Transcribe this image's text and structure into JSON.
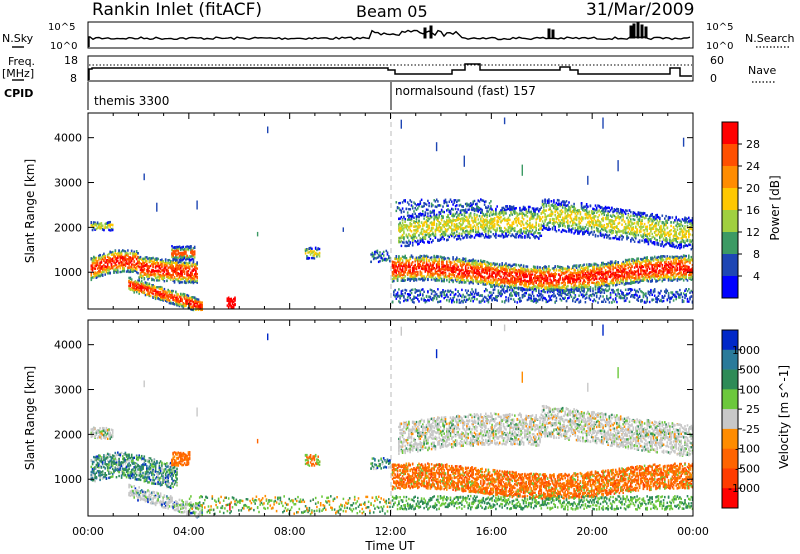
{
  "header": {
    "title": "Rankin Inlet (fitACF)",
    "beam": "Beam 05",
    "date": "31/Mar/2009"
  },
  "top_panels": {
    "nsky_label": "N.Sky",
    "nsky_ticks": [
      "10^5",
      "10^0"
    ],
    "nsearch_label": "N.Search",
    "nsearch_ticks": [
      "10^5",
      "10^0"
    ],
    "freq_label_1": "Freq.",
    "freq_label_2": "[MHz]",
    "freq_ticks": [
      "18",
      "8"
    ],
    "nave_label": "Nave",
    "nave_ticks": [
      "60",
      "0"
    ],
    "cpid_label": "CPID",
    "cpid_1": "themis 3300",
    "cpid_2": "normalsound (fast) 157"
  },
  "chart_data": [
    {
      "type": "heatmap",
      "title": "",
      "xlabel": "Time UT",
      "ylabel": "Slant Range [km]",
      "x_ticks": [
        "00:00",
        "04:00",
        "08:00",
        "12:00",
        "16:00",
        "20:00",
        "00:00"
      ],
      "y_ticks": [
        "1000",
        "2000",
        "3000",
        "4000"
      ],
      "ylim": [
        180,
        4550
      ],
      "colorbar": {
        "label": "Power [dB]",
        "ticks": [
          "28",
          "24",
          "20",
          "16",
          "12",
          "8",
          "4"
        ],
        "colors": [
          "#ff0000",
          "#ff5000",
          "#ff8c00",
          "#ffc800",
          "#a0d040",
          "#3c9a64",
          "#1e46b4",
          "#0000ff"
        ]
      },
      "regions": [
        {
          "t": [
            0.0,
            4.3
          ],
          "r": [
            800,
            1300
          ],
          "level": "high"
        },
        {
          "t": [
            1.5,
            4.5
          ],
          "r": [
            180,
            700
          ],
          "level": "high"
        },
        {
          "t": [
            3.3,
            4.2
          ],
          "r": [
            1300,
            1600
          ],
          "level": "medium"
        },
        {
          "t": [
            8.6,
            9.3
          ],
          "r": [
            1300,
            1600
          ],
          "level": "medium"
        },
        {
          "t": [
            11.2,
            12.0
          ],
          "r": [
            1200,
            1550
          ],
          "level": "low"
        },
        {
          "t": [
            12.0,
            24.0
          ],
          "r": [
            700,
            1300
          ],
          "level": "high"
        },
        {
          "t": [
            12.2,
            24.0
          ],
          "r": [
            1700,
            2500
          ],
          "level": "medium"
        }
      ]
    },
    {
      "type": "heatmap",
      "title": "",
      "xlabel": "Time UT",
      "ylabel": "Slant Range [km]",
      "x_ticks": [
        "00:00",
        "04:00",
        "08:00",
        "12:00",
        "16:00",
        "20:00",
        "00:00"
      ],
      "y_ticks": [
        "1000",
        "2000",
        "3000",
        "4000"
      ],
      "ylim": [
        180,
        4550
      ],
      "colorbar": {
        "label": "Velocity [m s^-1]",
        "ticks": [
          "1000",
          "500",
          "100",
          "25",
          "-25",
          "-100",
          "-500",
          "-1000"
        ],
        "colors": [
          "#0028c8",
          "#2a7a9a",
          "#2e8b57",
          "#6cc83c",
          "#c8c8c8",
          "#ff8c00",
          "#ff6400",
          "#ff3c00",
          "#ff0000"
        ]
      },
      "regions": [
        {
          "t": [
            0.0,
            3.5
          ],
          "r": [
            900,
            1600
          ],
          "level": "positive"
        },
        {
          "t": [
            3.3,
            4.0
          ],
          "r": [
            1300,
            1700
          ],
          "level": "negative"
        },
        {
          "t": [
            12.0,
            24.0
          ],
          "r": [
            600,
            1400
          ],
          "level": "negative"
        },
        {
          "t": [
            12.2,
            24.0
          ],
          "r": [
            1500,
            2500
          ],
          "level": "near-zero"
        }
      ]
    }
  ]
}
